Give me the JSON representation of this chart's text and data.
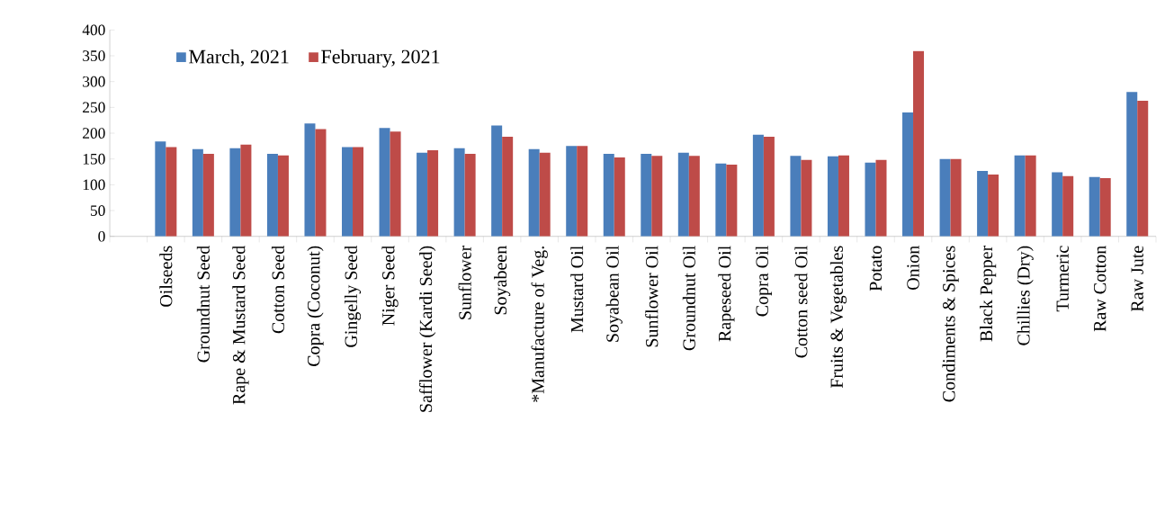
{
  "chart_data": {
    "type": "bar",
    "categories": [
      null,
      "Oilseeds",
      "Groundnut Seed",
      "Rape & Mustard Seed",
      "Cotton Seed",
      "Copra (Coconut)",
      "Gingelly Seed",
      "Niger Seed",
      "Safflower (Kardi Seed)",
      "Sunflower",
      "Soyabeen",
      "*Manufacture of Veg.",
      "Mustard Oil",
      "Soyabean Oil",
      "Sunflower Oil",
      "Groundnut Oil",
      "Rapeseed Oil",
      "Copra Oil",
      "Cotton seed Oil",
      "Fruits & Vegetables",
      "Potato",
      "Onion",
      "Condiments & Spices",
      "Black Pepper",
      "Chillies (Dry)",
      "Turmeric",
      "Raw Cotton",
      "Raw Jute"
    ],
    "series": [
      {
        "name": "March, 2021",
        "color": "#4a7ebb",
        "values": [
          null,
          184,
          169,
          171,
          160,
          219,
          173,
          210,
          162,
          171,
          215,
          169,
          175,
          160,
          160,
          162,
          141,
          197,
          156,
          155,
          143,
          240,
          150,
          127,
          157,
          124,
          115,
          280
        ]
      },
      {
        "name": "February, 2021",
        "color": "#be4b48",
        "values": [
          null,
          173,
          160,
          178,
          157,
          208,
          173,
          203,
          167,
          160,
          193,
          162,
          175,
          153,
          156,
          156,
          139,
          193,
          148,
          157,
          148,
          359,
          150,
          120,
          157,
          117,
          113,
          263
        ]
      }
    ],
    "ylim": [
      0,
      400
    ],
    "yticks": [
      0,
      50,
      100,
      150,
      200,
      250,
      300,
      350,
      400
    ],
    "grid": false,
    "legend": "top left"
  }
}
